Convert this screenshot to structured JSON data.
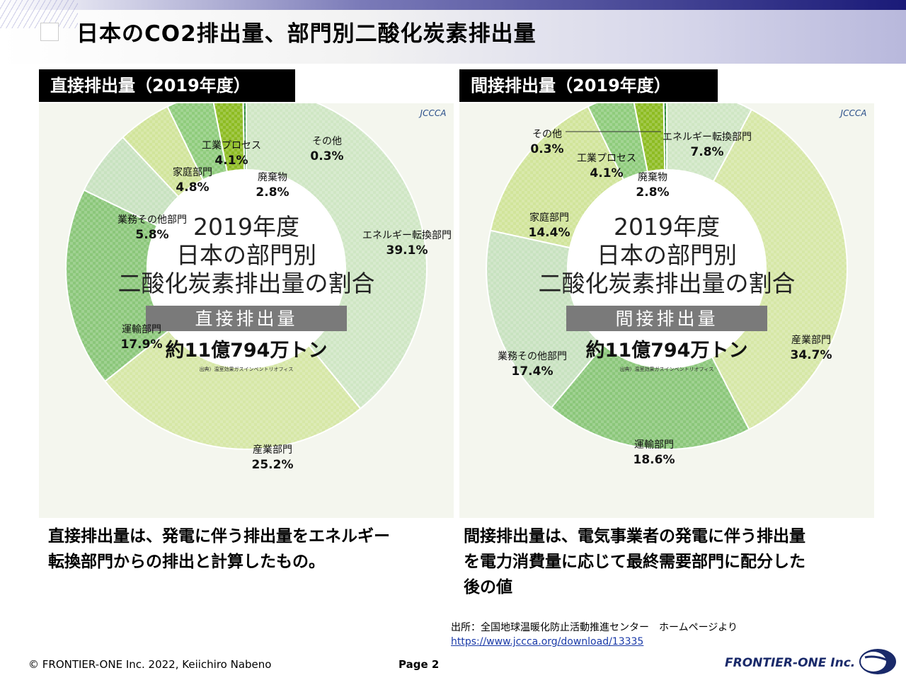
{
  "title": "日本のCO2排出量、部門別二酸化炭素排出量",
  "chart_data": [
    {
      "type": "donut",
      "panel_label": "直接排出量（2019年度）",
      "center_title": [
        "2019年度",
        "日本の部門別",
        "二酸化炭素排出量の割合"
      ],
      "center_band": "直接排出量",
      "total": "約11億794万トン",
      "source_note": "出典）温室効果ガスインベントリオフィス",
      "logo": "JCCCA",
      "slices": [
        {
          "name": "エネルギー転換部門",
          "value": 39.1,
          "color": "#cfe6c4",
          "label": "39.1%"
        },
        {
          "name": "産業部門",
          "value": 25.2,
          "color": "#d6e7a6",
          "label": "25.2%"
        },
        {
          "name": "運輸部門",
          "value": 17.9,
          "color": "#8bc77a",
          "label": "17.9%"
        },
        {
          "name": "業務その他部門",
          "value": 5.8,
          "color": "#c8e2c0",
          "label": "5.8%"
        },
        {
          "name": "家庭部門",
          "value": 4.8,
          "color": "#d1e49a",
          "label": "4.8%"
        },
        {
          "name": "工業プロセス",
          "value": 4.1,
          "color": "#8fcc7c",
          "label": "4.1%"
        },
        {
          "name": "廃棄物",
          "value": 2.8,
          "color": "#8dbc22",
          "label": "2.8%"
        },
        {
          "name": "その他",
          "value": 0.3,
          "color": "#2e8b3a",
          "label": "0.3%"
        }
      ]
    },
    {
      "type": "donut",
      "panel_label": "間接排出量（2019年度）",
      "center_title": [
        "2019年度",
        "日本の部門別",
        "二酸化炭素排出量の割合"
      ],
      "center_band": "間接排出量",
      "total": "約11億794万トン",
      "source_note": "出典）温室効果ガスインベントリオフィス",
      "logo": "JCCCA",
      "slices": [
        {
          "name": "エネルギー転換部門",
          "value": 7.8,
          "color": "#cfe6c4",
          "label": "7.8%"
        },
        {
          "name": "産業部門",
          "value": 34.7,
          "color": "#d6e7a6",
          "label": "34.7%"
        },
        {
          "name": "運輸部門",
          "value": 18.6,
          "color": "#8bc77a",
          "label": "18.6%"
        },
        {
          "name": "業務その他部門",
          "value": 17.4,
          "color": "#c8e2c0",
          "label": "17.4%"
        },
        {
          "name": "家庭部門",
          "value": 14.4,
          "color": "#d1e49a",
          "label": "14.4%"
        },
        {
          "name": "工業プロセス",
          "value": 4.1,
          "color": "#8fcc7c",
          "label": "4.1%"
        },
        {
          "name": "廃棄物",
          "value": 2.8,
          "color": "#8dbc22",
          "label": "2.8%"
        },
        {
          "name": "その他",
          "value": 0.3,
          "color": "#2e8b3a",
          "label": "0.3%"
        }
      ]
    }
  ],
  "captions": {
    "left": [
      "直接排出量は、発電に伴う排出量をエネルギー",
      "転換部門からの排出と計算したもの。"
    ],
    "right": [
      "間接排出量は、電気事業者の発電に伴う排出量",
      "を電力消費量に応じて最終需要部門に配分した",
      "後の値"
    ]
  },
  "source": {
    "text": "出所：全国地球温暖化防止活動推進センター　ホームページより",
    "url": "https://www.jccca.org/download/13335"
  },
  "footer": {
    "copyright": "© FRONTIER-ONE Inc. 2022,  Keiichiro  Nabeno",
    "page": "Page 2",
    "company": "FRONTIER-ONE Inc."
  }
}
